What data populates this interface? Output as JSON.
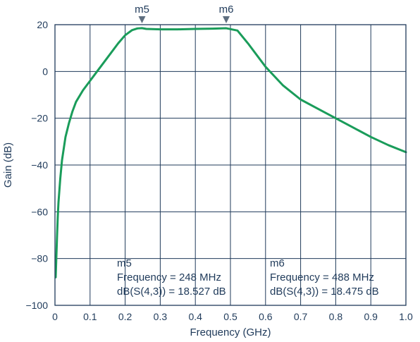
{
  "chart_data": {
    "type": "line",
    "title": "",
    "xlabel": "Frequency (GHz)",
    "ylabel": "Gain (dB)",
    "xlim": [
      0,
      1.0
    ],
    "ylim": [
      -100,
      20
    ],
    "xticks": [
      0,
      0.1,
      0.2,
      0.3,
      0.4,
      0.5,
      0.6,
      0.7,
      0.8,
      0.9,
      1.0
    ],
    "xtick_labels": [
      "0",
      "0.1",
      "0.2",
      "0.3",
      "0.4",
      "0.5",
      "0.6",
      "0.7",
      "0.8",
      "0.9",
      "1.0"
    ],
    "yticks": [
      -100,
      -80,
      -60,
      -40,
      -20,
      0,
      20
    ],
    "ytick_labels": [
      "−100",
      "−80",
      "−60",
      "−40",
      "−20",
      "0",
      "20"
    ],
    "grid": true,
    "line_color": "#1a9c5a",
    "axis_color": "#1f3a5a",
    "series": [
      {
        "x": [
          0.002,
          0.004,
          0.006,
          0.008,
          0.01,
          0.015,
          0.02,
          0.03,
          0.04,
          0.05,
          0.06,
          0.08,
          0.1,
          0.12,
          0.15,
          0.18,
          0.2,
          0.22,
          0.235,
          0.248,
          0.26,
          0.3,
          0.35,
          0.4,
          0.45,
          0.488,
          0.52,
          0.55,
          0.6,
          0.65,
          0.7,
          0.75,
          0.8,
          0.85,
          0.9,
          0.95,
          1.0
        ],
        "y": [
          -88,
          -79,
          -70,
          -62,
          -56,
          -46,
          -38,
          -28,
          -22,
          -17,
          -13,
          -8,
          -4,
          0,
          6,
          12,
          15.5,
          17.7,
          18.4,
          18.527,
          18.2,
          18.0,
          18.0,
          18.2,
          18.3,
          18.475,
          17.5,
          12,
          2,
          -6,
          -12,
          -16,
          -20,
          -24,
          -28,
          -31.5,
          -34.5
        ]
      }
    ],
    "markers": [
      {
        "name": "m5",
        "x": 0.248,
        "y": 18.527,
        "readout_title": "m5",
        "readout_line1": "Frequency = 248 MHz",
        "readout_line2": "dB(S(4,3)) = 18.527 dB"
      },
      {
        "name": "m6",
        "x": 0.488,
        "y": 18.475,
        "readout_title": "m6",
        "readout_line1": "Frequency = 488 MHz",
        "readout_line2": "dB(S(4,3)) = 18.475 dB"
      }
    ]
  }
}
